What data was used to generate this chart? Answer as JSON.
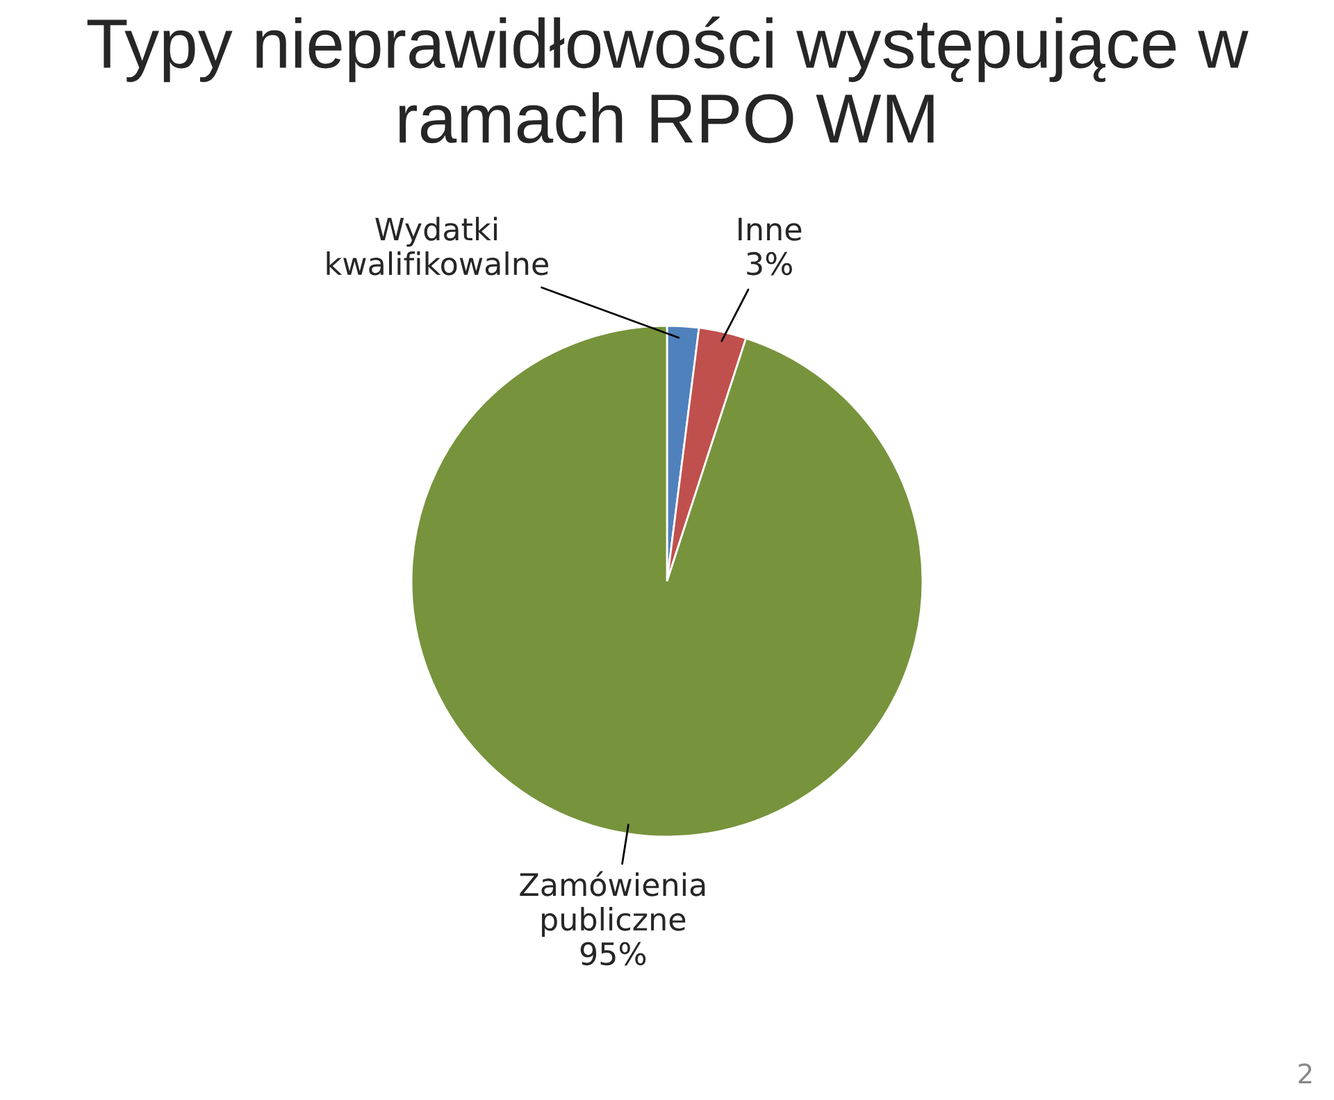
{
  "chart_data": {
    "type": "pie",
    "title": "Typy nieprawidłowości występujące w ramach RPO WM",
    "categories": [
      "Wydatki kwalifikowalne",
      "Inne",
      "Zamówienia publiczne"
    ],
    "values": [
      2,
      3,
      95
    ],
    "value_labels": [
      null,
      "3%",
      "95%"
    ],
    "colors": [
      "#4f81bd",
      "#c0504d",
      "#77933c"
    ],
    "annotations": [
      "2"
    ]
  }
}
